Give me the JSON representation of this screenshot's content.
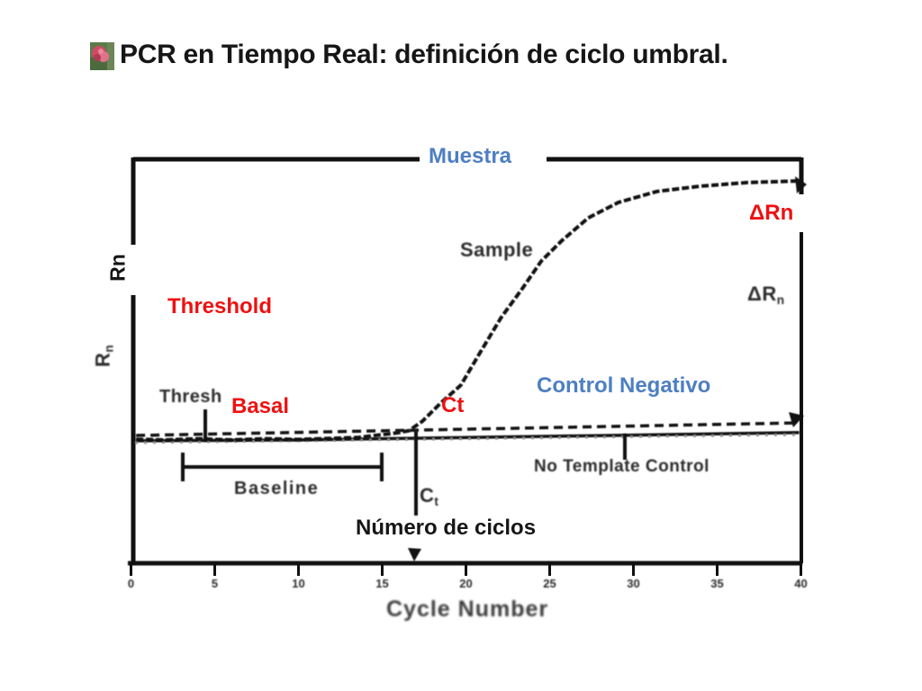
{
  "slide": {
    "title": "PCR en Tiempo Real: definición de ciclo umbral.",
    "colors": {
      "accent_red": "#ee1111",
      "accent_blue": "#4d7fc2",
      "ink": "#161616"
    }
  },
  "overlay_labels": {
    "muestra": "Muestra",
    "delta_rn": "ΔRn",
    "threshold": "Threshold",
    "basal": "Basal",
    "ct": "Ct",
    "control_negativo": "Control Negativo",
    "numero_ciclos": "Número de ciclos",
    "rn": "Rn"
  },
  "scan_labels": {
    "sample": "Sample",
    "thresh": "Thresh",
    "baseline": "Baseline",
    "ct_base": "C",
    "ct_sub": "t",
    "ntc": "No Template Control",
    "delta_rn_base": "ΔR",
    "delta_rn_sub": "n",
    "rn_base": "R",
    "rn_sub": "n",
    "xlabel": "Cycle Number"
  },
  "chart_data": {
    "type": "line",
    "title": "Real-time PCR amplification plot (threshold cycle definition)",
    "xlabel": "Cycle Number",
    "ylabel": "Rn",
    "xlim": [
      0,
      40
    ],
    "ylim": [
      0,
      1
    ],
    "x_ticks": [
      0,
      5,
      10,
      15,
      20,
      25,
      30,
      35,
      40
    ],
    "grid": false,
    "legend_position": "none",
    "series": [
      {
        "name": "Sample",
        "style": "solid",
        "points": [
          [
            0.3,
            0.314
          ],
          [
            2,
            0.312
          ],
          [
            4,
            0.315
          ],
          [
            6,
            0.312
          ],
          [
            8,
            0.315
          ],
          [
            10,
            0.313
          ],
          [
            12,
            0.316
          ],
          [
            13.5,
            0.318
          ],
          [
            15,
            0.325
          ],
          [
            16,
            0.33
          ],
          [
            16.6,
            0.335
          ],
          [
            17.4,
            0.358
          ],
          [
            18.5,
            0.403
          ],
          [
            19.7,
            0.447
          ],
          [
            20.8,
            0.524
          ],
          [
            22.1,
            0.613
          ],
          [
            23.4,
            0.686
          ],
          [
            24.5,
            0.752
          ],
          [
            25.7,
            0.801
          ],
          [
            27.3,
            0.858
          ],
          [
            29.1,
            0.896
          ],
          [
            31.4,
            0.923
          ],
          [
            34,
            0.936
          ],
          [
            36.8,
            0.945
          ],
          [
            39.9,
            0.949
          ]
        ]
      },
      {
        "name": "No Template Control",
        "style": "solid",
        "points": [
          [
            0.3,
            0.31
          ],
          [
            10,
            0.312
          ],
          [
            20,
            0.318
          ],
          [
            30,
            0.324
          ],
          [
            39.9,
            0.33
          ]
        ]
      },
      {
        "name": "Threshold",
        "style": "dashed",
        "points": [
          [
            0.3,
            0.323
          ],
          [
            39.8,
            0.354
          ]
        ]
      }
    ],
    "annotations": {
      "ct_cycle": 17,
      "baseline_cycle_range": [
        3,
        15
      ],
      "delta_rn_at_cycle": 40
    }
  }
}
